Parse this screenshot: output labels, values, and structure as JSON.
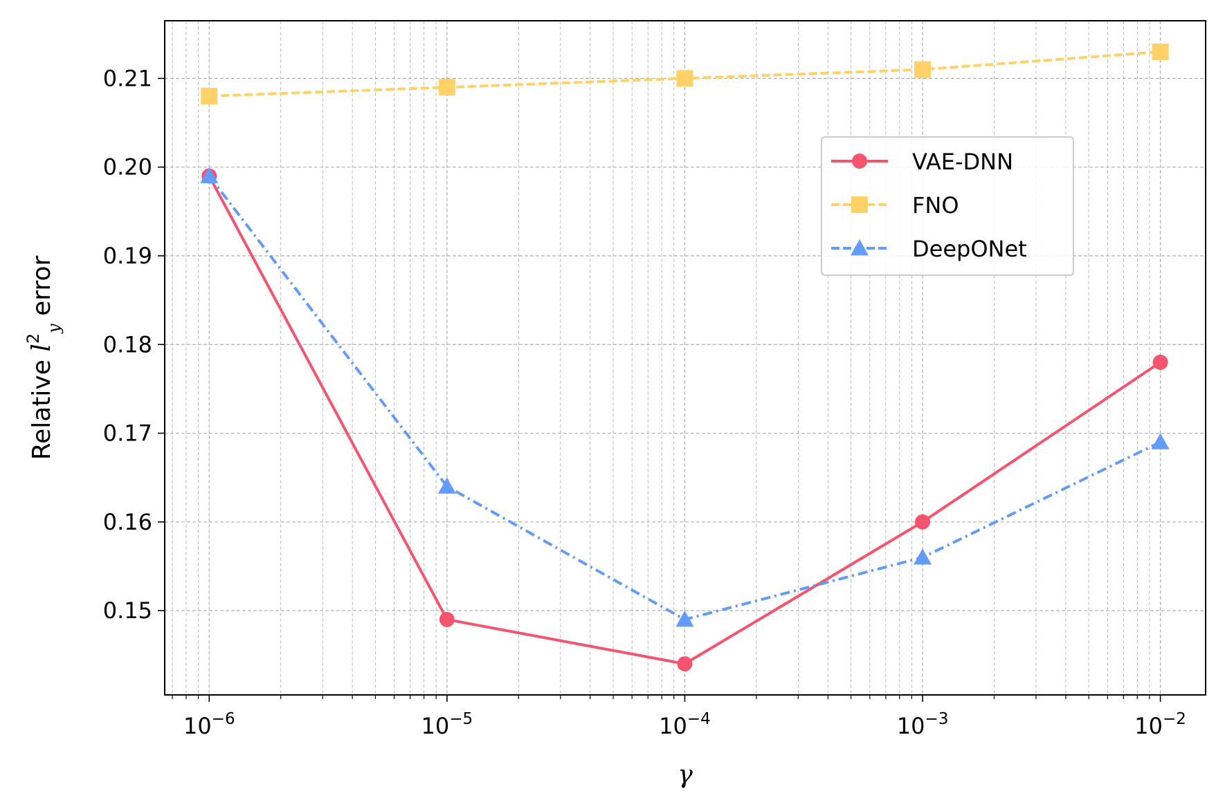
{
  "chart_data": {
    "type": "line",
    "x_scale": "log",
    "x": [
      1e-06,
      1e-05,
      0.0001,
      0.001,
      0.01
    ],
    "xlim": [
      6.5e-07,
      0.0155
    ],
    "ylim": [
      0.1405,
      0.2165
    ],
    "xlabel": "γ",
    "ylabel_prefix": "Relative ",
    "ylabel_symbol": "l",
    "ylabel_sup": "2",
    "ylabel_sub": "y",
    "ylabel_suffix": " error",
    "x_ticks": [
      {
        "value": 1e-06,
        "base": "10",
        "exp": "−6"
      },
      {
        "value": 1e-05,
        "base": "10",
        "exp": "−5"
      },
      {
        "value": 0.0001,
        "base": "10",
        "exp": "−4"
      },
      {
        "value": 0.001,
        "base": "10",
        "exp": "−3"
      },
      {
        "value": 0.01,
        "base": "10",
        "exp": "−2"
      }
    ],
    "y_ticks": [
      {
        "value": 0.15,
        "label": "0.15"
      },
      {
        "value": 0.16,
        "label": "0.16"
      },
      {
        "value": 0.17,
        "label": "0.17"
      },
      {
        "value": 0.18,
        "label": "0.18"
      },
      {
        "value": 0.19,
        "label": "0.19"
      },
      {
        "value": 0.2,
        "label": "0.20"
      },
      {
        "value": 0.21,
        "label": "0.21"
      }
    ],
    "grid": "major-and-minor",
    "legend_position": "upper-right",
    "series": [
      {
        "name": "VAE-DNN",
        "values": [
          0.199,
          0.149,
          0.144,
          0.16,
          0.178
        ],
        "color": "#F5546F",
        "marker": "circle",
        "linestyle": "solid"
      },
      {
        "name": "FNO",
        "values": [
          0.208,
          0.209,
          0.21,
          0.211,
          0.213
        ],
        "color": "#FFD166",
        "marker": "square",
        "linestyle": "dashed"
      },
      {
        "name": "DeepONet",
        "values": [
          0.199,
          0.164,
          0.149,
          0.156,
          0.169
        ],
        "color": "#639BF9",
        "marker": "triangle",
        "linestyle": "dashdot"
      }
    ]
  }
}
